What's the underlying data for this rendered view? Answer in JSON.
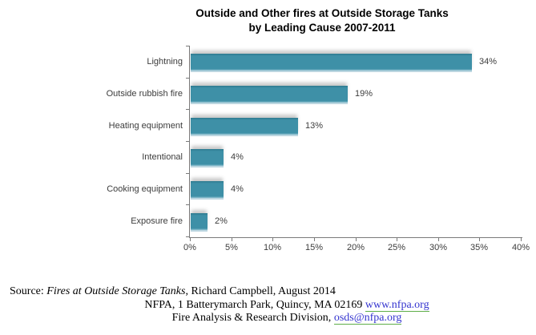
{
  "title": {
    "line1": "Outside and Other fires at Outside Storage Tanks",
    "line2": "by Leading Cause 2007-2011"
  },
  "chart_data": {
    "type": "bar",
    "orientation": "horizontal",
    "title": "Outside and Other fires at Outside Storage Tanks by Leading Cause 2007-2011",
    "categories": [
      "Lightning",
      "Outside rubbish fire",
      "Heating equipment",
      "Intentional",
      "Cooking equipment",
      "Exposure fire"
    ],
    "values": [
      34,
      19,
      13,
      4,
      4,
      2
    ],
    "value_labels": [
      "34%",
      "19%",
      "13%",
      "4%",
      "4%",
      "2%"
    ],
    "x_ticks": [
      "0%",
      "5%",
      "10%",
      "15%",
      "20%",
      "25%",
      "30%",
      "35%",
      "40%"
    ],
    "xlim": [
      0,
      40
    ],
    "grid": false,
    "legend": false,
    "bar_color": "#3E90A7",
    "bar_color_top_edge": "#2E7A8F",
    "bar_color_bottom_edge": "#8FC2D1",
    "label_color": "#3C3C3C",
    "axis_color": "#7A7A7A"
  },
  "source": {
    "prefix": "Source: ",
    "work_title": "Fires at Outside Storage Tanks",
    "line1_rest": ", Richard Campbell, August 2014",
    "line2_text": "NFPA, 1 Batterymarch Park, Quincy, MA 02169 ",
    "line2_link": "www.nfpa.org",
    "line3_text": "Fire Analysis & Research Division, ",
    "line3_link": "osds@nfpa.org",
    "link_color": "#3434CF",
    "link_underline_color": "#5FAE49"
  }
}
